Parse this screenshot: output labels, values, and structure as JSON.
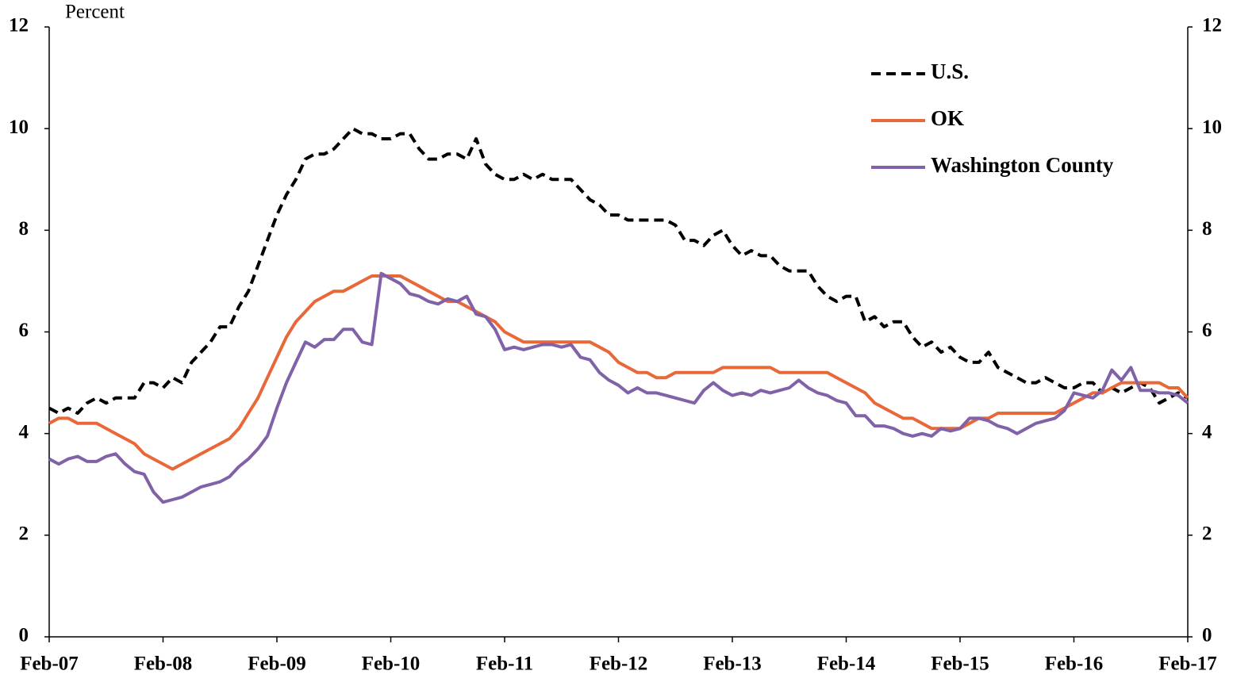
{
  "chart_data": {
    "type": "line",
    "y_label": "Percent",
    "categories": [
      "Feb-07",
      null,
      null,
      null,
      null,
      null,
      null,
      null,
      null,
      null,
      null,
      null,
      "Feb-08",
      null,
      null,
      null,
      null,
      null,
      null,
      null,
      null,
      null,
      null,
      null,
      "Feb-09",
      null,
      null,
      null,
      null,
      null,
      null,
      null,
      null,
      null,
      null,
      null,
      "Feb-10",
      null,
      null,
      null,
      null,
      null,
      null,
      null,
      null,
      null,
      null,
      null,
      "Feb-11",
      null,
      null,
      null,
      null,
      null,
      null,
      null,
      null,
      null,
      null,
      null,
      "Feb-12",
      null,
      null,
      null,
      null,
      null,
      null,
      null,
      null,
      null,
      null,
      null,
      "Feb-13",
      null,
      null,
      null,
      null,
      null,
      null,
      null,
      null,
      null,
      null,
      null,
      "Feb-14",
      null,
      null,
      null,
      null,
      null,
      null,
      null,
      null,
      null,
      null,
      null,
      "Feb-15",
      null,
      null,
      null,
      null,
      null,
      null,
      null,
      null,
      null,
      null,
      null,
      "Feb-16",
      null,
      null,
      null,
      null,
      null,
      null,
      null,
      null,
      null,
      null,
      null,
      "Feb-17"
    ],
    "series": [
      {
        "name": "U.S.",
        "color": "#000000",
        "dashed": true,
        "values": [
          4.5,
          4.4,
          4.5,
          4.4,
          4.6,
          4.7,
          4.6,
          4.7,
          4.7,
          4.7,
          5.0,
          5.0,
          4.9,
          5.1,
          5.0,
          5.4,
          5.6,
          5.8,
          6.1,
          6.1,
          6.5,
          6.8,
          7.3,
          7.8,
          8.3,
          8.7,
          9.0,
          9.4,
          9.5,
          9.5,
          9.6,
          9.8,
          10.0,
          9.9,
          9.9,
          9.8,
          9.8,
          9.9,
          9.9,
          9.6,
          9.4,
          9.4,
          9.5,
          9.5,
          9.4,
          9.8,
          9.3,
          9.1,
          9.0,
          9.0,
          9.1,
          9.0,
          9.1,
          9.0,
          9.0,
          9.0,
          8.8,
          8.6,
          8.5,
          8.3,
          8.3,
          8.2,
          8.2,
          8.2,
          8.2,
          8.2,
          8.1,
          7.8,
          7.8,
          7.7,
          7.9,
          8.0,
          7.7,
          7.5,
          7.6,
          7.5,
          7.5,
          7.3,
          7.2,
          7.2,
          7.2,
          6.9,
          6.7,
          6.6,
          6.7,
          6.7,
          6.2,
          6.3,
          6.1,
          6.2,
          6.2,
          5.9,
          5.7,
          5.8,
          5.6,
          5.7,
          5.5,
          5.4,
          5.4,
          5.6,
          5.3,
          5.2,
          5.1,
          5.0,
          5.0,
          5.1,
          5.0,
          4.9,
          4.9,
          5.0,
          5.0,
          4.8,
          4.9,
          4.8,
          4.9,
          5.0,
          4.9,
          4.6,
          4.7,
          4.8,
          4.7
        ]
      },
      {
        "name": "OK",
        "color": "#e8683a",
        "values": [
          4.2,
          4.3,
          4.3,
          4.2,
          4.2,
          4.2,
          4.1,
          4.0,
          3.9,
          3.8,
          3.6,
          3.5,
          3.4,
          3.3,
          3.4,
          3.5,
          3.6,
          3.7,
          3.8,
          3.9,
          4.1,
          4.4,
          4.7,
          5.1,
          5.5,
          5.9,
          6.2,
          6.4,
          6.6,
          6.7,
          6.8,
          6.8,
          6.9,
          7.0,
          7.1,
          7.1,
          7.1,
          7.1,
          7.0,
          6.9,
          6.8,
          6.7,
          6.6,
          6.6,
          6.5,
          6.4,
          6.3,
          6.2,
          6.0,
          5.9,
          5.8,
          5.8,
          5.8,
          5.8,
          5.8,
          5.8,
          5.8,
          5.8,
          5.7,
          5.6,
          5.4,
          5.3,
          5.2,
          5.2,
          5.1,
          5.1,
          5.2,
          5.2,
          5.2,
          5.2,
          5.2,
          5.3,
          5.3,
          5.3,
          5.3,
          5.3,
          5.3,
          5.2,
          5.2,
          5.2,
          5.2,
          5.2,
          5.2,
          5.1,
          5.0,
          4.9,
          4.8,
          4.6,
          4.5,
          4.4,
          4.3,
          4.3,
          4.2,
          4.1,
          4.1,
          4.1,
          4.1,
          4.2,
          4.3,
          4.3,
          4.4,
          4.4,
          4.4,
          4.4,
          4.4,
          4.4,
          4.4,
          4.5,
          4.6,
          4.7,
          4.8,
          4.8,
          4.9,
          5.0,
          5.0,
          5.0,
          5.0,
          5.0,
          4.9,
          4.9,
          4.7
        ]
      },
      {
        "name": "Washington County",
        "color": "#7f62a8",
        "values": [
          3.5,
          3.4,
          3.5,
          3.55,
          3.45,
          3.45,
          3.55,
          3.6,
          3.4,
          3.25,
          3.2,
          2.85,
          2.65,
          2.7,
          2.75,
          2.85,
          2.95,
          3.0,
          3.05,
          3.15,
          3.35,
          3.5,
          3.7,
          3.95,
          4.5,
          5.0,
          5.4,
          5.8,
          5.7,
          5.85,
          5.85,
          6.05,
          6.05,
          5.8,
          5.75,
          7.15,
          7.05,
          6.95,
          6.75,
          6.7,
          6.6,
          6.55,
          6.65,
          6.6,
          6.7,
          6.35,
          6.3,
          6.05,
          5.65,
          5.7,
          5.65,
          5.7,
          5.75,
          5.75,
          5.7,
          5.75,
          5.5,
          5.45,
          5.2,
          5.05,
          4.95,
          4.8,
          4.9,
          4.8,
          4.8,
          4.75,
          4.7,
          4.65,
          4.6,
          4.85,
          5.0,
          4.85,
          4.75,
          4.8,
          4.75,
          4.85,
          4.8,
          4.85,
          4.9,
          5.05,
          4.9,
          4.8,
          4.75,
          4.65,
          4.6,
          4.35,
          4.35,
          4.15,
          4.15,
          4.1,
          4.0,
          3.95,
          4.0,
          3.95,
          4.1,
          4.05,
          4.1,
          4.3,
          4.3,
          4.25,
          4.15,
          4.1,
          4.0,
          4.1,
          4.2,
          4.25,
          4.3,
          4.45,
          4.8,
          4.75,
          4.7,
          4.85,
          5.25,
          5.05,
          5.3,
          4.85,
          4.85,
          4.8,
          4.8,
          4.75,
          4.6
        ]
      }
    ],
    "ylim": [
      0,
      12
    ],
    "yticks": [
      0,
      2,
      4,
      6,
      8,
      10,
      12
    ],
    "y2lim": [
      0,
      12
    ],
    "y2ticks": [
      0,
      2,
      4,
      6,
      8,
      10,
      12
    ],
    "grid": false,
    "legend": "upper right"
  }
}
